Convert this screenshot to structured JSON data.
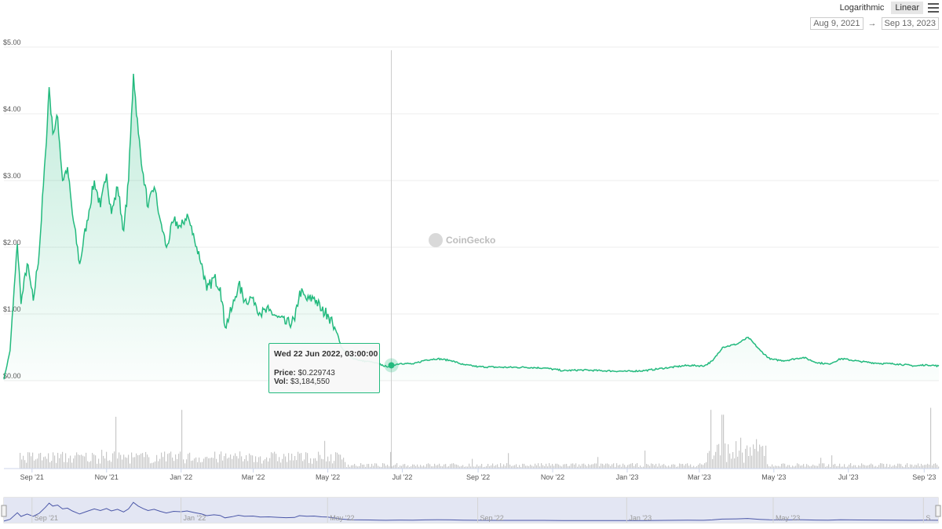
{
  "toolbar": {
    "logarithmic_label": "Logarithmic",
    "linear_label": "Linear",
    "active_scale": "linear",
    "range_from": "Aug 9, 2021",
    "range_arrow": "→",
    "range_to": "Sep 13, 2023"
  },
  "watermark": "CoinGecko",
  "tooltip": {
    "date": "Wed 22 Jun 2022, 03:00:00",
    "price_label": "Price:",
    "price_value": "$0.229743",
    "vol_label": "Vol:",
    "vol_value": "$3,184,550"
  },
  "colors": {
    "line": "#23ba7e",
    "volume": "#c8c8c8",
    "navigator_line": "#4b57a8",
    "navigator_fill": "#e3e6f3"
  },
  "chart_data": {
    "type": "line",
    "title": "",
    "xlabel": "",
    "ylabel": "",
    "ylim": [
      0,
      5
    ],
    "y_tick_labels": [
      "$0.00",
      "$1.00",
      "$2.00",
      "$3.00",
      "$4.00",
      "$5.00"
    ],
    "y_tick_values": [
      0,
      1,
      2,
      3,
      4,
      5
    ],
    "x_range": [
      "2021-08-09",
      "2023-09-13"
    ],
    "x_ticks": [
      {
        "label": "Sep '21",
        "date": "2021-09-01"
      },
      {
        "label": "Nov '21",
        "date": "2021-11-01"
      },
      {
        "label": "Jan '22",
        "date": "2022-01-01"
      },
      {
        "label": "Mar '22",
        "date": "2022-03-01"
      },
      {
        "label": "May '22",
        "date": "2022-05-01"
      },
      {
        "label": "Jul '22",
        "date": "2022-07-01"
      },
      {
        "label": "Sep '22",
        "date": "2022-09-01"
      },
      {
        "label": "Nov '22",
        "date": "2022-11-01"
      },
      {
        "label": "Jan '23",
        "date": "2023-01-01"
      },
      {
        "label": "Mar '23",
        "date": "2023-03-01"
      },
      {
        "label": "May '23",
        "date": "2023-05-01"
      },
      {
        "label": "Jul '23",
        "date": "2023-07-01"
      },
      {
        "label": "Sep '23",
        "date": "2023-09-01"
      }
    ],
    "navigator_ticks": [
      {
        "label": "Sep '21",
        "date": "2021-09-01"
      },
      {
        "label": "Jan '22",
        "date": "2022-01-01"
      },
      {
        "label": "May '22",
        "date": "2022-05-01"
      },
      {
        "label": "Sep '22",
        "date": "2022-09-01"
      },
      {
        "label": "Jan '23",
        "date": "2023-01-01"
      },
      {
        "label": "May '23",
        "date": "2023-05-01"
      },
      {
        "label": "S...",
        "date": "2023-09-01"
      }
    ],
    "price_series": [
      [
        "2021-08-09",
        0.02
      ],
      [
        "2021-08-14",
        0.45
      ],
      [
        "2021-08-20",
        2.05
      ],
      [
        "2021-08-23",
        1.15
      ],
      [
        "2021-08-28",
        1.75
      ],
      [
        "2021-09-02",
        1.2
      ],
      [
        "2021-09-07",
        1.95
      ],
      [
        "2021-09-12",
        3.4
      ],
      [
        "2021-09-15",
        4.4
      ],
      [
        "2021-09-18",
        3.7
      ],
      [
        "2021-09-22",
        3.95
      ],
      [
        "2021-09-26",
        3.0
      ],
      [
        "2021-09-30",
        3.2
      ],
      [
        "2021-10-04",
        2.5
      ],
      [
        "2021-10-10",
        1.75
      ],
      [
        "2021-10-16",
        2.4
      ],
      [
        "2021-10-22",
        3.0
      ],
      [
        "2021-10-27",
        2.6
      ],
      [
        "2021-11-01",
        3.1
      ],
      [
        "2021-11-05",
        2.5
      ],
      [
        "2021-11-10",
        2.9
      ],
      [
        "2021-11-15",
        2.25
      ],
      [
        "2021-11-19",
        3.0
      ],
      [
        "2021-11-23",
        4.6
      ],
      [
        "2021-11-27",
        3.7
      ],
      [
        "2021-12-01",
        3.1
      ],
      [
        "2021-12-05",
        2.6
      ],
      [
        "2021-12-10",
        2.9
      ],
      [
        "2021-12-15",
        2.4
      ],
      [
        "2021-12-20",
        2.0
      ],
      [
        "2021-12-26",
        2.4
      ],
      [
        "2022-01-01",
        2.3
      ],
      [
        "2022-01-06",
        2.5
      ],
      [
        "2022-01-12",
        2.1
      ],
      [
        "2022-01-18",
        1.75
      ],
      [
        "2022-01-22",
        1.35
      ],
      [
        "2022-01-28",
        1.55
      ],
      [
        "2022-02-02",
        1.4
      ],
      [
        "2022-02-06",
        0.8
      ],
      [
        "2022-02-12",
        1.1
      ],
      [
        "2022-02-17",
        1.45
      ],
      [
        "2022-02-22",
        1.2
      ],
      [
        "2022-03-01",
        1.25
      ],
      [
        "2022-03-07",
        1.0
      ],
      [
        "2022-03-14",
        1.05
      ],
      [
        "2022-03-21",
        0.95
      ],
      [
        "2022-03-28",
        0.85
      ],
      [
        "2022-04-04",
        0.9
      ],
      [
        "2022-04-08",
        1.35
      ],
      [
        "2022-04-14",
        1.2
      ],
      [
        "2022-04-20",
        1.25
      ],
      [
        "2022-04-26",
        1.05
      ],
      [
        "2022-05-01",
        1.0
      ],
      [
        "2022-05-05",
        0.85
      ],
      [
        "2022-05-09",
        0.7
      ],
      [
        "2022-05-12",
        0.5
      ],
      [
        "2022-05-20",
        0.35
      ],
      [
        "2022-05-28",
        0.3
      ],
      [
        "2022-06-05",
        0.28
      ],
      [
        "2022-06-12",
        0.25
      ],
      [
        "2022-06-18",
        0.21
      ],
      [
        "2022-06-22",
        0.23
      ],
      [
        "2022-06-30",
        0.26
      ],
      [
        "2022-07-10",
        0.25
      ],
      [
        "2022-07-20",
        0.31
      ],
      [
        "2022-07-30",
        0.33
      ],
      [
        "2022-08-10",
        0.3
      ],
      [
        "2022-08-20",
        0.24
      ],
      [
        "2022-09-01",
        0.21
      ],
      [
        "2022-09-20",
        0.2
      ],
      [
        "2022-10-10",
        0.2
      ],
      [
        "2022-10-25",
        0.19
      ],
      [
        "2022-11-10",
        0.15
      ],
      [
        "2022-11-25",
        0.16
      ],
      [
        "2022-12-10",
        0.15
      ],
      [
        "2022-12-31",
        0.14
      ],
      [
        "2023-01-15",
        0.15
      ],
      [
        "2023-02-01",
        0.19
      ],
      [
        "2023-02-20",
        0.23
      ],
      [
        "2023-03-05",
        0.22
      ],
      [
        "2023-03-12",
        0.3
      ],
      [
        "2023-03-20",
        0.5
      ],
      [
        "2023-04-01",
        0.55
      ],
      [
        "2023-04-10",
        0.65
      ],
      [
        "2023-04-20",
        0.45
      ],
      [
        "2023-04-28",
        0.32
      ],
      [
        "2023-05-10",
        0.3
      ],
      [
        "2023-05-25",
        0.35
      ],
      [
        "2023-06-05",
        0.27
      ],
      [
        "2023-06-15",
        0.25
      ],
      [
        "2023-06-25",
        0.33
      ],
      [
        "2023-07-10",
        0.29
      ],
      [
        "2023-07-25",
        0.26
      ],
      [
        "2023-08-10",
        0.25
      ],
      [
        "2023-08-25",
        0.22
      ],
      [
        "2023-09-03",
        0.24
      ],
      [
        "2023-09-13",
        0.22
      ]
    ],
    "volume_spikes": [
      [
        "2021-11-08",
        0.75
      ],
      [
        "2022-01-01",
        0.85
      ],
      [
        "2023-03-10",
        0.85
      ],
      [
        "2023-03-20",
        0.78
      ],
      [
        "2023-09-06",
        0.88
      ]
    ],
    "crosshair_date": "2022-06-22",
    "crosshair_price": 0.229743
  }
}
